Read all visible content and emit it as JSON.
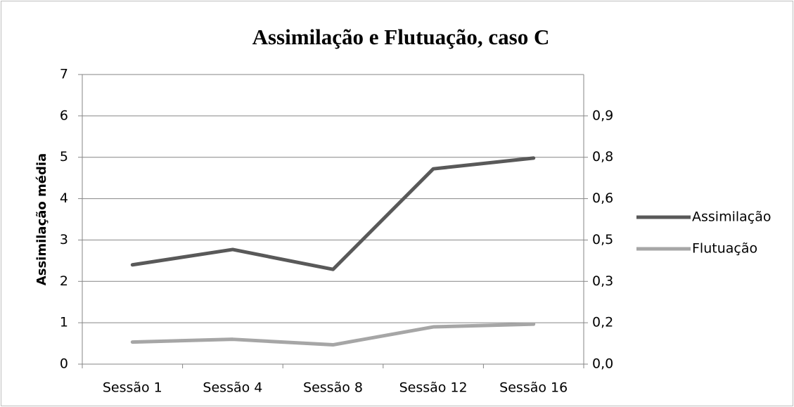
{
  "chart_data": {
    "type": "line",
    "title": "Assimilação e Flutuação, caso C",
    "y_label": "Assimilação média",
    "categories": [
      "Sessão 1",
      "Sessão 4",
      "Sessão 8",
      "Sessão 12",
      "Sessão 16"
    ],
    "series": [
      {
        "name": "Assimilação",
        "color": "#595959",
        "values": [
          2.4,
          2.77,
          2.29,
          4.72,
          4.98
        ]
      },
      {
        "name": "Flutuação",
        "color": "#a6a6a6",
        "axis": "y2",
        "values": [
          0.08,
          0.09,
          0.07,
          0.135,
          0.145
        ]
      }
    ],
    "ylim": [
      0,
      7
    ],
    "yticks": [
      0,
      1,
      2,
      3,
      4,
      5,
      6,
      7
    ],
    "y2lim": [
      0,
      1.05
    ],
    "y2ticks": [
      {
        "value": 0,
        "label": "0,0"
      },
      {
        "value": 0.15,
        "label": "0,2"
      },
      {
        "value": 0.3,
        "label": "0,3"
      },
      {
        "value": 0.45,
        "label": "0,5"
      },
      {
        "value": 0.6,
        "label": "0,6"
      },
      {
        "value": 0.75,
        "label": "0,8"
      },
      {
        "value": 0.9,
        "label": "0,9"
      }
    ],
    "grid": true,
    "legend": "right"
  }
}
